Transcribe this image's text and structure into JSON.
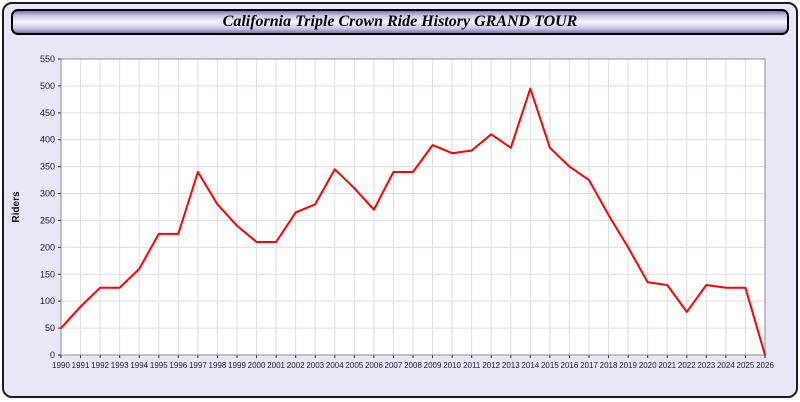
{
  "header": {
    "title": "California Triple Crown Ride History GRAND TOUR"
  },
  "theme": {
    "page_bg": "#e9e7f6",
    "plot_bg": "#ffffff",
    "grid_color": "#dddde6",
    "plot_border": "#8a8a9a",
    "axis_text": "#1b1b3a",
    "line_color": "#ff0000",
    "outer_border": "#1a1a2e"
  },
  "chart_data": {
    "type": "line",
    "title": "California Triple Crown Ride History GRAND TOUR",
    "xlabel": "",
    "ylabel": "Riders",
    "ylim": [
      0,
      550
    ],
    "ytick_step": 50,
    "grid": true,
    "legend": "none",
    "x": [
      1990,
      1991,
      1992,
      1993,
      1994,
      1995,
      1996,
      1997,
      1998,
      1999,
      2000,
      2001,
      2002,
      2003,
      2004,
      2005,
      2006,
      2007,
      2008,
      2009,
      2010,
      2011,
      2012,
      2013,
      2014,
      2015,
      2016,
      2017,
      2018,
      2019,
      2020,
      2021,
      2022,
      2023,
      2024,
      2025,
      2026
    ],
    "series": [
      {
        "name": "Riders",
        "color": "#ff0000",
        "values": [
          50,
          90,
          125,
          125,
          160,
          225,
          225,
          340,
          280,
          240,
          210,
          210,
          265,
          280,
          345,
          310,
          270,
          340,
          340,
          390,
          375,
          380,
          410,
          385,
          495,
          385,
          350,
          325,
          260,
          200,
          135,
          130,
          80,
          130,
          125,
          125,
          0
        ]
      }
    ]
  }
}
